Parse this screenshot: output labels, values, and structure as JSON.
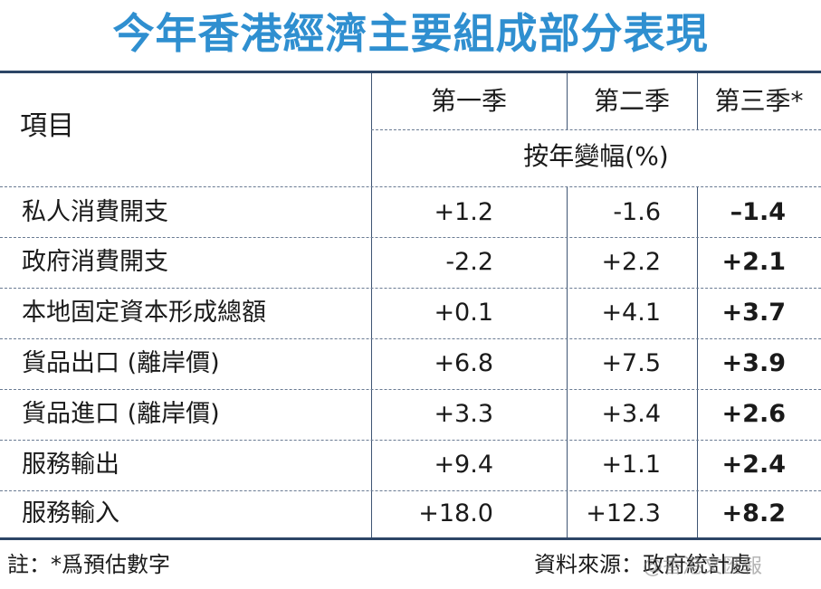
{
  "title": "今年香港經濟主要組成部分表現",
  "table": {
    "item_header": "項目",
    "quarters": [
      "第一季",
      "第二季",
      "第三季*"
    ],
    "unit_header": "按年變幅(%)",
    "rows": [
      {
        "label": "私人消費開支",
        "q1": "+1.2",
        "q2": "-1.6",
        "q3": "–1.4"
      },
      {
        "label": "政府消費開支",
        "q1": "-2.2",
        "q2": "+2.2",
        "q3": "+2.1"
      },
      {
        "label": "本地固定資本形成總額",
        "q1": "+0.1",
        "q2": "+4.1",
        "q3": "+3.7"
      },
      {
        "label": "貨品出口 (離岸價)",
        "q1": "+6.8",
        "q2": "+7.5",
        "q3": "+3.9"
      },
      {
        "label": "貨品進口 (離岸價)",
        "q1": "+3.3",
        "q2": "+3.4",
        "q3": "+2.6"
      },
      {
        "label": "服務輸出",
        "q1": "+9.4",
        "q2": "+1.1",
        "q3": "+2.4"
      },
      {
        "label": "服務輸入",
        "q1": "+18.0",
        "q2": "+12.3",
        "q3": "+8.2"
      }
    ]
  },
  "footer": {
    "note": "註：*爲預估數字",
    "source": "資料來源：政府統計處"
  },
  "watermark": "@香港文匯報",
  "colors": {
    "title": "#2f8fd0",
    "rule": "#2c4566"
  }
}
